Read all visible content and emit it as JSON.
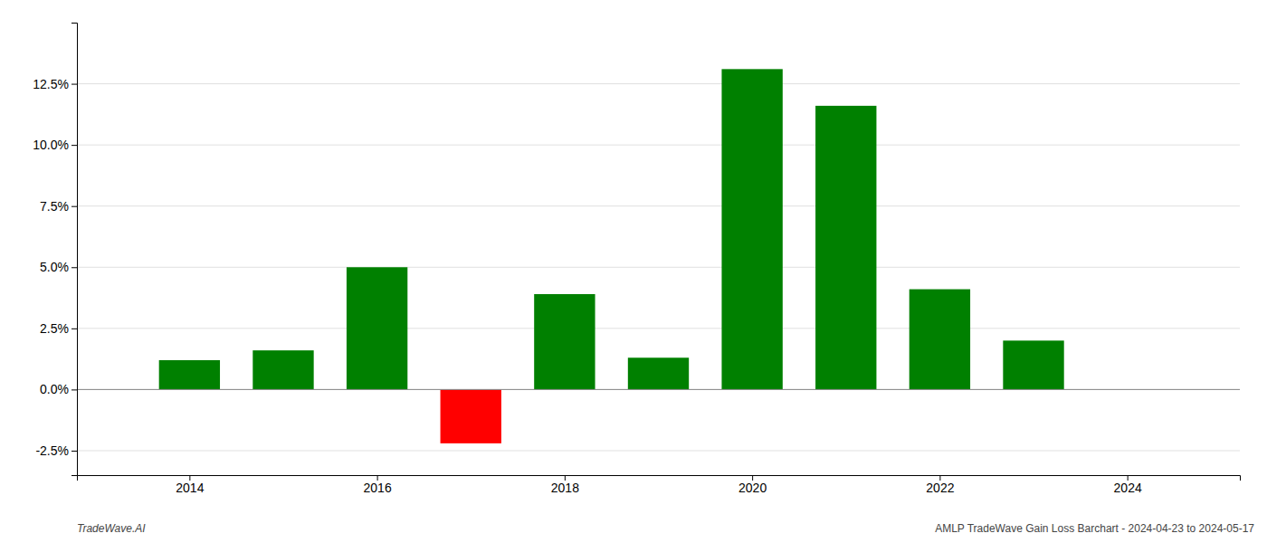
{
  "chart_data": {
    "type": "bar",
    "x": [
      2014,
      2015,
      2016,
      2017,
      2018,
      2019,
      2020,
      2021,
      2022,
      2023
    ],
    "values": [
      0.012,
      0.016,
      0.05,
      -0.022,
      0.039,
      0.013,
      0.131,
      0.116,
      0.041,
      0.02
    ],
    "colors": [
      "#008000",
      "#008000",
      "#008000",
      "#ff0000",
      "#008000",
      "#008000",
      "#008000",
      "#008000",
      "#008000",
      "#008000"
    ],
    "xlim": [
      2012.8,
      2025.2
    ],
    "xticks": [
      2014,
      2016,
      2018,
      2020,
      2022,
      2024
    ],
    "ylim": [
      -0.035,
      0.15
    ],
    "yticks": [
      {
        "value": -0.025,
        "label": "-2.5%"
      },
      {
        "value": 0.0,
        "label": "0.0%"
      },
      {
        "value": 0.025,
        "label": "2.5%"
      },
      {
        "value": 0.05,
        "label": "5.0%"
      },
      {
        "value": 0.075,
        "label": "7.5%"
      },
      {
        "value": 0.1,
        "label": "10.0%"
      },
      {
        "value": 0.125,
        "label": "12.5%"
      }
    ],
    "grid": true,
    "annotations": [
      "TradeWave.AI",
      "AMLP TradeWave Gain Loss Barchart - 2024-04-23 to 2024-05-17"
    ]
  }
}
